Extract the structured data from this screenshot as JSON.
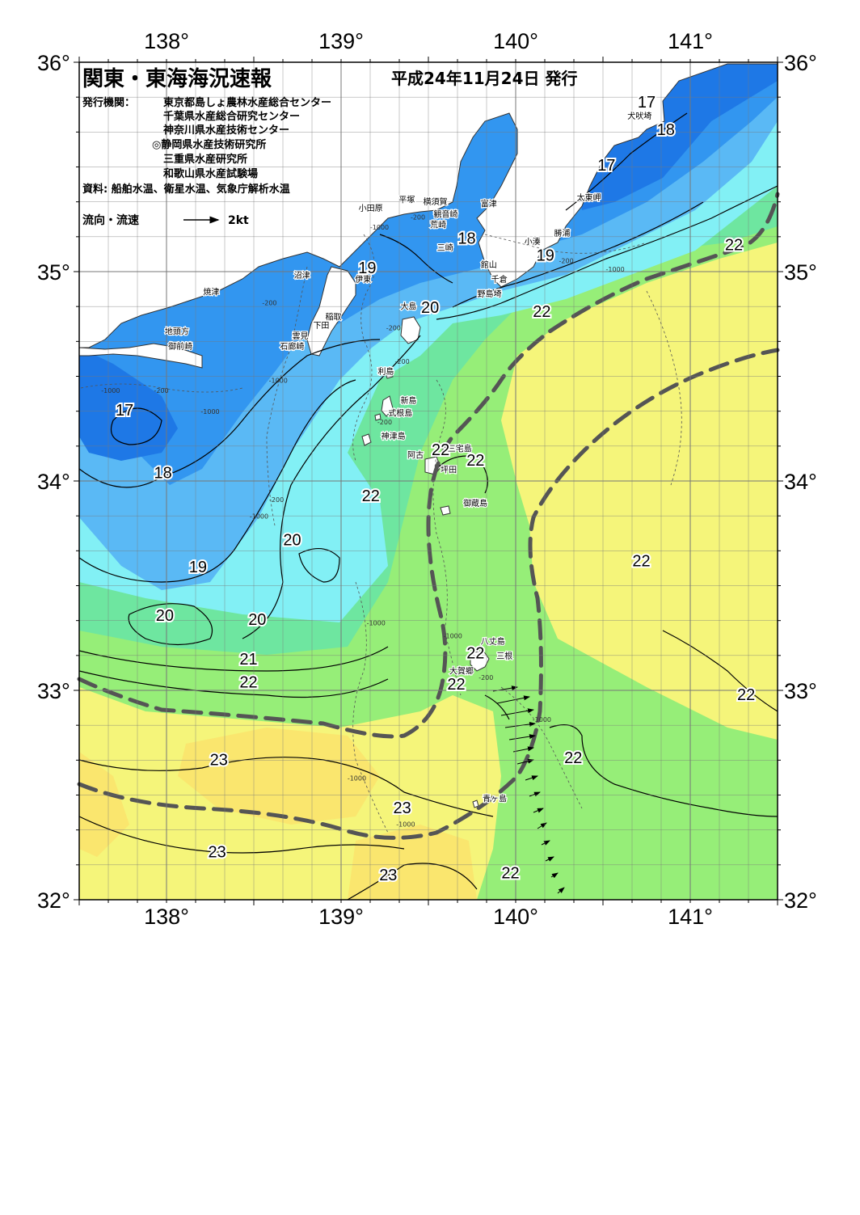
{
  "header": {
    "title": "関東・東海海況速報",
    "date": "平成24年11月24日 発行",
    "issuer_label": "発行機関：",
    "issuers": [
      "東京都島しょ農林水産総合センター",
      "千葉県水産総合研究センター",
      "神奈川県水産技術センター",
      "◎静岡県水産技術研究所",
      "三重県水産研究所",
      "和歌山県水産試験場"
    ],
    "source": "資料: 船舶水温、衛星水温、気象庁解析水温",
    "legend_label": "流向・流速",
    "legend_scale": "2kt"
  },
  "axes": {
    "lon_labels": [
      "138°",
      "139°",
      "140°",
      "141°"
    ],
    "lat_labels": [
      "36°",
      "35°",
      "34°",
      "33°",
      "32°"
    ]
  },
  "colors": {
    "land": "#ffffff",
    "t17": "#1e78e6",
    "t18": "#3296f0",
    "t19": "#5ab9f5",
    "t20": "#82f0f5",
    "t21": "#6ee6a0",
    "t22": "#96ee78",
    "t23": "#f5f57a",
    "t24": "#fae66e",
    "kuroshio": "#555555"
  },
  "isotherm_labels": [
    {
      "text": "17",
      "lon": 137.76,
      "lat": 34.34
    },
    {
      "text": "18",
      "lon": 137.98,
      "lat": 34.04
    },
    {
      "text": "19",
      "lon": 138.18,
      "lat": 33.59
    },
    {
      "text": "20",
      "lon": 137.99,
      "lat": 33.36
    },
    {
      "text": "20",
      "lon": 138.52,
      "lat": 33.34
    },
    {
      "text": "20",
      "lon": 138.72,
      "lat": 33.72
    },
    {
      "text": "21",
      "lon": 138.47,
      "lat": 33.15
    },
    {
      "text": "22",
      "lon": 138.47,
      "lat": 33.04
    },
    {
      "text": "23",
      "lon": 138.3,
      "lat": 32.67
    },
    {
      "text": "23",
      "lon": 138.29,
      "lat": 32.23
    },
    {
      "text": "23",
      "lon": 139.35,
      "lat": 32.44
    },
    {
      "text": "23",
      "lon": 139.27,
      "lat": 32.12
    },
    {
      "text": "19",
      "lon": 139.15,
      "lat": 35.02
    },
    {
      "text": "20",
      "lon": 139.51,
      "lat": 34.83
    },
    {
      "text": "18",
      "lon": 139.72,
      "lat": 35.16
    },
    {
      "text": "17",
      "lon": 140.75,
      "lat": 35.81
    },
    {
      "text": "18",
      "lon": 140.86,
      "lat": 35.68
    },
    {
      "text": "17",
      "lon": 140.52,
      "lat": 35.51
    },
    {
      "text": "19",
      "lon": 140.17,
      "lat": 35.08
    },
    {
      "text": "22",
      "lon": 140.15,
      "lat": 34.81
    },
    {
      "text": "22",
      "lon": 141.25,
      "lat": 35.13
    },
    {
      "text": "22",
      "lon": 139.57,
      "lat": 34.15
    },
    {
      "text": "22",
      "lon": 139.77,
      "lat": 34.1
    },
    {
      "text": "22",
      "lon": 139.17,
      "lat": 33.93
    },
    {
      "text": "22",
      "lon": 140.72,
      "lat": 33.62
    },
    {
      "text": "22",
      "lon": 139.77,
      "lat": 33.18
    },
    {
      "text": "22",
      "lon": 139.66,
      "lat": 33.03
    },
    {
      "text": "22",
      "lon": 140.33,
      "lat": 32.68
    },
    {
      "text": "22",
      "lon": 141.32,
      "lat": 32.98
    },
    {
      "text": "22",
      "lon": 139.97,
      "lat": 32.13
    }
  ],
  "place_names": [
    {
      "text": "犬吠埼",
      "lon": 140.64,
      "lat": 35.73
    },
    {
      "text": "太東岬",
      "lon": 140.35,
      "lat": 35.34
    },
    {
      "text": "勝浦",
      "lon": 140.22,
      "lat": 35.17
    },
    {
      "text": "小湊",
      "lon": 140.05,
      "lat": 35.13
    },
    {
      "text": "富津",
      "lon": 139.8,
      "lat": 35.31
    },
    {
      "text": "横須賀",
      "lon": 139.47,
      "lat": 35.32
    },
    {
      "text": "観音崎",
      "lon": 139.53,
      "lat": 35.26
    },
    {
      "text": "平塚",
      "lon": 139.33,
      "lat": 35.33
    },
    {
      "text": "小田原",
      "lon": 139.1,
      "lat": 35.29
    },
    {
      "text": "荒崎",
      "lon": 139.51,
      "lat": 35.21
    },
    {
      "text": "三崎",
      "lon": 139.55,
      "lat": 35.1
    },
    {
      "text": "館山",
      "lon": 139.8,
      "lat": 35.02
    },
    {
      "text": "千倉",
      "lon": 139.86,
      "lat": 34.95
    },
    {
      "text": "野島埼",
      "lon": 139.78,
      "lat": 34.88
    },
    {
      "text": "沼津",
      "lon": 138.73,
      "lat": 34.97
    },
    {
      "text": "伊東",
      "lon": 139.08,
      "lat": 34.95
    },
    {
      "text": "焼津",
      "lon": 138.21,
      "lat": 34.89
    },
    {
      "text": "稲取",
      "lon": 138.91,
      "lat": 34.77
    },
    {
      "text": "下田",
      "lon": 138.84,
      "lat": 34.73
    },
    {
      "text": "雲見",
      "lon": 138.72,
      "lat": 34.68
    },
    {
      "text": "石廊崎",
      "lon": 138.65,
      "lat": 34.63
    },
    {
      "text": "地頭方",
      "lon": 137.99,
      "lat": 34.7
    },
    {
      "text": "御前崎",
      "lon": 138.01,
      "lat": 34.63
    },
    {
      "text": "大島",
      "lon": 139.34,
      "lat": 34.82
    },
    {
      "text": "利島",
      "lon": 139.21,
      "lat": 34.51
    },
    {
      "text": "新島",
      "lon": 139.34,
      "lat": 34.37
    },
    {
      "text": "式根島",
      "lon": 139.27,
      "lat": 34.31
    },
    {
      "text": "神津島",
      "lon": 139.23,
      "lat": 34.2
    },
    {
      "text": "三宅島",
      "lon": 139.61,
      "lat": 34.14
    },
    {
      "text": "阿古",
      "lon": 139.38,
      "lat": 34.11
    },
    {
      "text": "坪田",
      "lon": 139.57,
      "lat": 34.04
    },
    {
      "text": "御蔵島",
      "lon": 139.7,
      "lat": 33.88
    },
    {
      "text": "八丈島",
      "lon": 139.8,
      "lat": 33.22
    },
    {
      "text": "三根",
      "lon": 139.89,
      "lat": 33.15
    },
    {
      "text": "大賀郷",
      "lon": 139.62,
      "lat": 33.08
    },
    {
      "text": "青ヶ島",
      "lon": 139.81,
      "lat": 32.47
    }
  ],
  "depth_labels": [
    {
      "text": "-200",
      "lon": 139.44,
      "lat": 35.25
    },
    {
      "text": "-1000",
      "lon": 139.22,
      "lat": 35.2
    },
    {
      "text": "-200",
      "lon": 140.29,
      "lat": 35.04
    },
    {
      "text": "-1000",
      "lon": 140.57,
      "lat": 35.0
    },
    {
      "text": "-200",
      "lon": 138.59,
      "lat": 34.84
    },
    {
      "text": "-200",
      "lon": 139.3,
      "lat": 34.72
    },
    {
      "text": "-200",
      "lon": 139.35,
      "lat": 34.56
    },
    {
      "text": "-1000",
      "lon": 138.64,
      "lat": 34.47
    },
    {
      "text": "-1000",
      "lon": 137.68,
      "lat": 34.42
    },
    {
      "text": "-200",
      "lon": 137.97,
      "lat": 34.42
    },
    {
      "text": "-1000",
      "lon": 138.25,
      "lat": 34.32
    },
    {
      "text": "-200",
      "lon": 139.25,
      "lat": 34.27
    },
    {
      "text": "-200",
      "lon": 138.63,
      "lat": 33.9
    },
    {
      "text": "-1000",
      "lon": 138.53,
      "lat": 33.82
    },
    {
      "text": "-1000",
      "lon": 139.2,
      "lat": 33.31
    },
    {
      "text": "-1000",
      "lon": 139.64,
      "lat": 33.25
    },
    {
      "text": "-200",
      "lon": 139.83,
      "lat": 33.05
    },
    {
      "text": "-1000",
      "lon": 140.15,
      "lat": 32.85
    },
    {
      "text": "-1000",
      "lon": 139.09,
      "lat": 32.57
    },
    {
      "text": "-1000",
      "lon": 139.37,
      "lat": 32.35
    }
  ]
}
